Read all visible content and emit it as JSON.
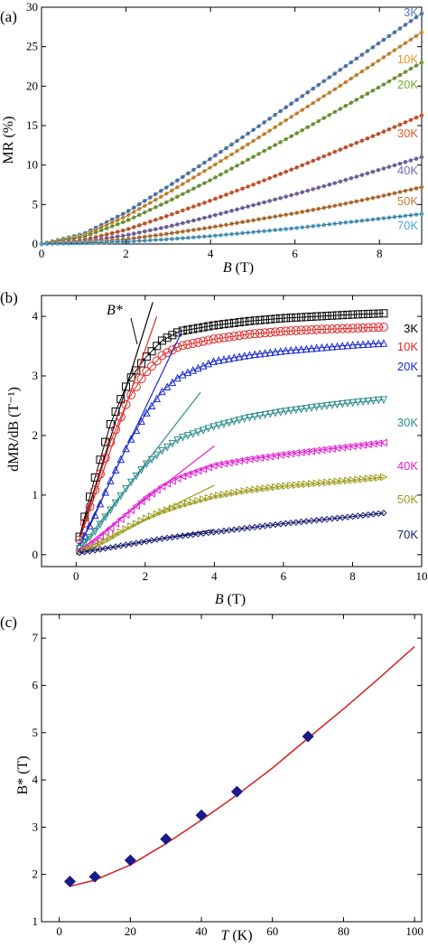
{
  "chart_data": [
    {
      "type": "scatter",
      "panel_label": "(a)",
      "xlabel_var": "B",
      "xlabel_unit": " (T)",
      "ylabel": "MR (%)",
      "xlim": [
        0,
        9
      ],
      "ylim": [
        0,
        30
      ],
      "xticks": [
        0,
        2,
        4,
        6,
        8
      ],
      "yticks": [
        0,
        5,
        10,
        15,
        20,
        25,
        30
      ],
      "series": [
        {
          "name": "3K",
          "color": "#4f7fc0",
          "x": [
            0,
            1,
            2,
            3,
            4,
            5,
            6,
            7,
            8,
            9
          ],
          "y": [
            0,
            1.3,
            4.0,
            7.3,
            10.8,
            14.4,
            18.1,
            21.8,
            25.5,
            29.2
          ]
        },
        {
          "name": "10K",
          "color": "#e5952b",
          "x": [
            0,
            1,
            2,
            3,
            4,
            5,
            6,
            7,
            8,
            9
          ],
          "y": [
            0,
            1.1,
            3.5,
            6.5,
            9.7,
            13.0,
            16.4,
            19.8,
            23.3,
            26.8
          ]
        },
        {
          "name": "20K",
          "color": "#78a935",
          "x": [
            0,
            1,
            2,
            3,
            4,
            5,
            6,
            7,
            8,
            9
          ],
          "y": [
            0,
            0.9,
            2.9,
            5.4,
            8.1,
            11.0,
            13.9,
            16.9,
            19.9,
            23.0
          ]
        },
        {
          "name": "30K",
          "color": "#e0582a",
          "x": [
            0,
            1,
            2,
            3,
            4,
            5,
            6,
            7,
            8,
            9
          ],
          "y": [
            0,
            0.5,
            1.8,
            3.6,
            5.5,
            7.5,
            9.6,
            11.8,
            14.0,
            16.3
          ]
        },
        {
          "name": "40K",
          "color": "#7b68b0",
          "x": [
            0,
            1,
            2,
            3,
            4,
            5,
            6,
            7,
            8,
            9
          ],
          "y": [
            0,
            0.3,
            1.1,
            2.2,
            3.5,
            4.9,
            6.3,
            7.8,
            9.4,
            11.0
          ]
        },
        {
          "name": "50K",
          "color": "#c8782e",
          "x": [
            0,
            1,
            2,
            3,
            4,
            5,
            6,
            7,
            8,
            9
          ],
          "y": [
            0,
            0.2,
            0.6,
            1.3,
            2.1,
            3.0,
            3.9,
            4.9,
            6.0,
            7.2
          ]
        },
        {
          "name": "70K",
          "color": "#4ea8d8",
          "x": [
            0,
            1,
            2,
            3,
            4,
            5,
            6,
            7,
            8,
            9
          ],
          "y": [
            0,
            0.1,
            0.3,
            0.6,
            1.0,
            1.5,
            2.0,
            2.6,
            3.2,
            3.8
          ]
        }
      ]
    },
    {
      "type": "scatter",
      "panel_label": "(b)",
      "xlabel_var": "B",
      "xlabel_unit": " (T)",
      "ylabel": "dMR/dB (T⁻¹)",
      "xlim": [
        -1,
        10
      ],
      "ylim": [
        -0.2,
        4.35
      ],
      "xticks": [
        0,
        2,
        4,
        6,
        8,
        10
      ],
      "yticks": [
        0,
        1,
        2,
        3,
        4
      ],
      "annotation": "B*",
      "series": [
        {
          "name": "3K",
          "color": "#000000",
          "marker": "square",
          "x": [
            0.1,
            0.5,
            1.0,
            1.5,
            2.0,
            2.5,
            3.0,
            4.0,
            5.0,
            6.0,
            7.0,
            8.0,
            8.9
          ],
          "y": [
            0.3,
            1.2,
            2.2,
            2.9,
            3.3,
            3.6,
            3.75,
            3.85,
            3.92,
            3.97,
            4.0,
            4.03,
            4.05
          ]
        },
        {
          "name": "10K",
          "color": "#e02828",
          "marker": "circle",
          "x": [
            0.1,
            0.5,
            1.0,
            1.5,
            2.0,
            2.5,
            3.0,
            4.0,
            5.0,
            6.0,
            7.0,
            8.0,
            8.9
          ],
          "y": [
            0.25,
            1.0,
            1.9,
            2.6,
            3.05,
            3.35,
            3.5,
            3.62,
            3.7,
            3.75,
            3.78,
            3.8,
            3.82
          ]
        },
        {
          "name": "20K",
          "color": "#1c2bd0",
          "marker": "triangle-up",
          "x": [
            0.1,
            0.5,
            1.0,
            1.5,
            2.0,
            2.5,
            3.0,
            4.0,
            5.0,
            6.0,
            7.0,
            8.0,
            8.9
          ],
          "y": [
            0.15,
            0.6,
            1.25,
            1.85,
            2.35,
            2.75,
            3.0,
            3.25,
            3.35,
            3.42,
            3.47,
            3.52,
            3.55
          ]
        },
        {
          "name": "30K",
          "color": "#2e8d8d",
          "marker": "triangle-down",
          "x": [
            0.1,
            0.5,
            1.0,
            1.5,
            2.0,
            2.5,
            3.0,
            4.0,
            5.0,
            6.0,
            7.0,
            8.0,
            8.9
          ],
          "y": [
            0.1,
            0.35,
            0.75,
            1.15,
            1.5,
            1.75,
            1.95,
            2.15,
            2.3,
            2.4,
            2.48,
            2.55,
            2.6
          ]
        },
        {
          "name": "40K",
          "color": "#e020d0",
          "marker": "triangle-left",
          "x": [
            0.1,
            0.5,
            1.0,
            1.5,
            2.0,
            2.5,
            3.0,
            4.0,
            5.0,
            6.0,
            7.0,
            8.0,
            8.9
          ],
          "y": [
            0.07,
            0.2,
            0.45,
            0.7,
            0.95,
            1.15,
            1.3,
            1.5,
            1.6,
            1.68,
            1.75,
            1.82,
            1.88
          ]
        },
        {
          "name": "50K",
          "color": "#9a9a1a",
          "marker": "triangle-right",
          "x": [
            0.1,
            0.5,
            1.0,
            1.5,
            2.0,
            2.5,
            3.0,
            4.0,
            5.0,
            6.0,
            7.0,
            8.0,
            8.9
          ],
          "y": [
            0.05,
            0.12,
            0.28,
            0.45,
            0.6,
            0.72,
            0.82,
            0.98,
            1.08,
            1.15,
            1.2,
            1.25,
            1.3
          ]
        },
        {
          "name": "70K",
          "color": "#1a1a6e",
          "marker": "diamond",
          "x": [
            0.1,
            0.5,
            1.0,
            1.5,
            2.0,
            2.5,
            3.0,
            4.0,
            5.0,
            6.0,
            7.0,
            8.0,
            8.9
          ],
          "y": [
            0.03,
            0.07,
            0.12,
            0.17,
            0.22,
            0.27,
            0.31,
            0.38,
            0.45,
            0.52,
            0.58,
            0.64,
            0.7
          ]
        }
      ]
    },
    {
      "type": "scatter",
      "panel_label": "(c)",
      "xlabel_var": "T",
      "xlabel_unit": " (K)",
      "ylabel": "B* (T)",
      "xlim": [
        -5,
        102
      ],
      "ylim": [
        1,
        7.5
      ],
      "xticks": [
        0,
        20,
        40,
        60,
        80,
        100
      ],
      "yticks": [
        1,
        2,
        3,
        4,
        5,
        6,
        7
      ],
      "marker_color": "#1a1a8a",
      "fit_color": "#d42020",
      "points": {
        "x": [
          3,
          10,
          20,
          30,
          40,
          50,
          70
        ],
        "y": [
          1.85,
          1.95,
          2.3,
          2.75,
          3.25,
          3.75,
          4.92
        ]
      },
      "fit": {
        "x": [
          3,
          10,
          20,
          30,
          40,
          50,
          60,
          70,
          80,
          90,
          100
        ],
        "y": [
          1.75,
          1.88,
          2.2,
          2.65,
          3.15,
          3.68,
          4.25,
          4.88,
          5.5,
          6.15,
          6.82
        ]
      }
    }
  ]
}
